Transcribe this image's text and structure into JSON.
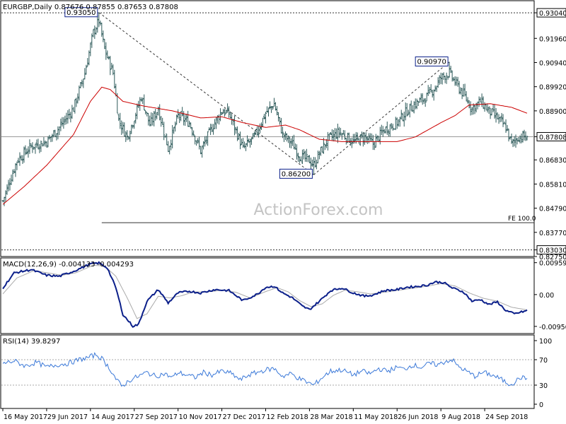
{
  "header": {
    "symbol_line": "EURGBP,Daily  0.87676 0.87855 0.87653 0.87808",
    "watermark": "ActionForex.com"
  },
  "colors": {
    "bars": "#2d5a5a",
    "ma": "#cc0000",
    "macd_main": "#0b1f8a",
    "macd_signal": "#aaaaaa",
    "rsi": "#3a78d8",
    "level_line": "#333333",
    "label_bg": "#ffffff",
    "label_border": "#0b1f8a"
  },
  "chart_data": [
    {
      "type": "bar",
      "name": "price",
      "title": "EURGBP,Daily",
      "ohlc_last": {
        "open": 0.87676,
        "high": 0.87855,
        "low": 0.87653,
        "close": 0.87808
      },
      "y_ticks": [
        "0.93040",
        "0.91960",
        "0.90940",
        "0.89920",
        "0.88900",
        "0.87808",
        "0.86830",
        "0.85810",
        "0.84790",
        "0.83770",
        "0.83030",
        "0.82750"
      ],
      "y_tick_values": [
        0.9304,
        0.9196,
        0.9094,
        0.8992,
        0.889,
        0.87808,
        0.8683,
        0.8581,
        0.8479,
        0.8377,
        0.8303,
        0.8275
      ],
      "ylim": [
        0.8275,
        0.9355
      ],
      "x_labels": [
        "16 May 2017",
        "29 Jun 2017",
        "14 Aug 2017",
        "27 Sep 2017",
        "10 Nov 2017",
        "27 Dec 2017",
        "12 Feb 2018",
        "28 Mar 2018",
        "11 May 2018",
        "26 Jun 2018",
        "9 Aug 2018",
        "24 Sep 2018"
      ],
      "x_label_bar_index": [
        0,
        31,
        62,
        93,
        124,
        155,
        186,
        217,
        248,
        279,
        310,
        341
      ],
      "bar_count": 372,
      "close_keypoints": [
        [
          0,
          0.851
        ],
        [
          10,
          0.868
        ],
        [
          20,
          0.874
        ],
        [
          31,
          0.876
        ],
        [
          40,
          0.882
        ],
        [
          50,
          0.89
        ],
        [
          58,
          0.905
        ],
        [
          64,
          0.922
        ],
        [
          68,
          0.927
        ],
        [
          72,
          0.915
        ],
        [
          78,
          0.905
        ],
        [
          82,
          0.885
        ],
        [
          88,
          0.878
        ],
        [
          93,
          0.886
        ],
        [
          98,
          0.895
        ],
        [
          104,
          0.883
        ],
        [
          110,
          0.89
        ],
        [
          117,
          0.873
        ],
        [
          124,
          0.887
        ],
        [
          132,
          0.884
        ],
        [
          140,
          0.872
        ],
        [
          148,
          0.882
        ],
        [
          155,
          0.889
        ],
        [
          160,
          0.888
        ],
        [
          170,
          0.873
        ],
        [
          178,
          0.878
        ],
        [
          186,
          0.888
        ],
        [
          192,
          0.892
        ],
        [
          198,
          0.879
        ],
        [
          205,
          0.875
        ],
        [
          210,
          0.87
        ],
        [
          217,
          0.868
        ],
        [
          220,
          0.866
        ],
        [
          224,
          0.871
        ],
        [
          230,
          0.877
        ],
        [
          238,
          0.88
        ],
        [
          248,
          0.876
        ],
        [
          256,
          0.878
        ],
        [
          262,
          0.875
        ],
        [
          270,
          0.881
        ],
        [
          279,
          0.884
        ],
        [
          286,
          0.889
        ],
        [
          292,
          0.892
        ],
        [
          300,
          0.895
        ],
        [
          306,
          0.899
        ],
        [
          310,
          0.903
        ],
        [
          316,
          0.905
        ],
        [
          320,
          0.901
        ],
        [
          326,
          0.896
        ],
        [
          332,
          0.89
        ],
        [
          338,
          0.893
        ],
        [
          344,
          0.889
        ],
        [
          350,
          0.886
        ],
        [
          356,
          0.882
        ],
        [
          360,
          0.875
        ],
        [
          365,
          0.878
        ],
        [
          371,
          0.87808
        ]
      ],
      "moving_average_keypoints": [
        [
          0,
          0.8495
        ],
        [
          15,
          0.857
        ],
        [
          31,
          0.866
        ],
        [
          50,
          0.879
        ],
        [
          62,
          0.893
        ],
        [
          70,
          0.899
        ],
        [
          76,
          0.898
        ],
        [
          85,
          0.893
        ],
        [
          100,
          0.891
        ],
        [
          120,
          0.889
        ],
        [
          140,
          0.886
        ],
        [
          155,
          0.8865
        ],
        [
          170,
          0.884
        ],
        [
          186,
          0.882
        ],
        [
          200,
          0.883
        ],
        [
          210,
          0.881
        ],
        [
          224,
          0.877
        ],
        [
          240,
          0.876
        ],
        [
          260,
          0.876
        ],
        [
          279,
          0.876
        ],
        [
          292,
          0.878
        ],
        [
          310,
          0.884
        ],
        [
          320,
          0.887
        ],
        [
          330,
          0.8915
        ],
        [
          345,
          0.892
        ],
        [
          360,
          0.8905
        ],
        [
          371,
          0.888
        ]
      ],
      "swing_labels": [
        {
          "label": "0.93050",
          "value": 0.9305,
          "bar": 68
        },
        {
          "label": "0.86200",
          "value": 0.862,
          "bar": 220
        },
        {
          "label": "0.90970",
          "value": 0.9097,
          "bar": 316
        }
      ],
      "trendlines": [
        {
          "from": [
            68,
            0.9305
          ],
          "to": [
            220,
            0.862
          ]
        },
        {
          "from": [
            220,
            0.862
          ],
          "to": [
            316,
            0.9097
          ]
        }
      ],
      "levels": [
        {
          "value": 0.9304,
          "label": "0.93040",
          "style": "dotted"
        },
        {
          "value": 0.8303,
          "label": "0.83030",
          "style": "dotted"
        },
        {
          "value": 0.87808,
          "label": "0.87808",
          "style": "solid"
        }
      ],
      "fe_line": {
        "label": "FE 100.0",
        "value": 0.8418,
        "from_bar": 70
      }
    },
    {
      "type": "line",
      "name": "macd",
      "title": "MACD(12,26,9) -0.004133 -0.004293",
      "y_ticks": [
        "0.009593",
        "0.00",
        "-0.009562"
      ],
      "y_tick_values": [
        0.009593,
        0,
        -0.009562
      ],
      "ylim": [
        -0.0115,
        0.0108
      ],
      "main_keypoints": [
        [
          0,
          0.002
        ],
        [
          8,
          0.0065
        ],
        [
          20,
          0.0075
        ],
        [
          31,
          0.0058
        ],
        [
          40,
          0.0055
        ],
        [
          50,
          0.007
        ],
        [
          62,
          0.0092
        ],
        [
          68,
          0.0095
        ],
        [
          74,
          0.008
        ],
        [
          80,
          0.002
        ],
        [
          85,
          -0.006
        ],
        [
          92,
          -0.0095
        ],
        [
          96,
          -0.009
        ],
        [
          102,
          -0.002
        ],
        [
          110,
          0.0015
        ],
        [
          117,
          -0.0025
        ],
        [
          124,
          0.0005
        ],
        [
          132,
          0.001
        ],
        [
          140,
          0.0005
        ],
        [
          150,
          0.0015
        ],
        [
          160,
          0.0012
        ],
        [
          170,
          -0.0018
        ],
        [
          180,
          0.0001
        ],
        [
          186,
          0.0022
        ],
        [
          192,
          0.0025
        ],
        [
          198,
          0.0005
        ],
        [
          205,
          -0.001
        ],
        [
          212,
          -0.0035
        ],
        [
          217,
          -0.0045
        ],
        [
          224,
          -0.002
        ],
        [
          232,
          0.0012
        ],
        [
          240,
          0.002
        ],
        [
          248,
          0.0005
        ],
        [
          256,
          -0.0005
        ],
        [
          262,
          -0.0001
        ],
        [
          270,
          0.0012
        ],
        [
          279,
          0.0015
        ],
        [
          286,
          0.0022
        ],
        [
          292,
          0.0024
        ],
        [
          300,
          0.0028
        ],
        [
          306,
          0.0038
        ],
        [
          312,
          0.0036
        ],
        [
          318,
          0.002
        ],
        [
          326,
          0.0008
        ],
        [
          332,
          -0.002
        ],
        [
          338,
          -0.0015
        ],
        [
          344,
          -0.003
        ],
        [
          350,
          -0.0022
        ],
        [
          356,
          -0.0048
        ],
        [
          362,
          -0.0058
        ],
        [
          371,
          -0.0048
        ]
      ],
      "signal_keypoints": [
        [
          0,
          0.0002
        ],
        [
          10,
          0.005
        ],
        [
          22,
          0.0072
        ],
        [
          32,
          0.0065
        ],
        [
          42,
          0.0058
        ],
        [
          52,
          0.0066
        ],
        [
          64,
          0.0088
        ],
        [
          72,
          0.0086
        ],
        [
          80,
          0.0055
        ],
        [
          88,
          -0.001
        ],
        [
          95,
          -0.0072
        ],
        [
          102,
          -0.0058
        ],
        [
          110,
          -0.0005
        ],
        [
          118,
          -0.001
        ],
        [
          126,
          -0.0004
        ],
        [
          135,
          0.0008
        ],
        [
          145,
          0.0008
        ],
        [
          155,
          0.0013
        ],
        [
          165,
          0.0007
        ],
        [
          175,
          -0.001
        ],
        [
          186,
          0.0009
        ],
        [
          194,
          0.0021
        ],
        [
          202,
          0.0008
        ],
        [
          210,
          -0.0018
        ],
        [
          218,
          -0.0036
        ],
        [
          226,
          -0.0028
        ],
        [
          234,
          -0.0002
        ],
        [
          242,
          0.0013
        ],
        [
          250,
          0.0009
        ],
        [
          260,
          0.0002
        ],
        [
          270,
          0.0007
        ],
        [
          280,
          0.0013
        ],
        [
          290,
          0.0019
        ],
        [
          300,
          0.0025
        ],
        [
          310,
          0.0033
        ],
        [
          320,
          0.0026
        ],
        [
          330,
          0.0005
        ],
        [
          340,
          -0.0011
        ],
        [
          350,
          -0.002
        ],
        [
          360,
          -0.0038
        ],
        [
          371,
          -0.0046
        ]
      ]
    },
    {
      "type": "line",
      "name": "rsi",
      "title": "RSI(14) 39.8297",
      "y_ticks": [
        "100",
        "70",
        "30",
        "0"
      ],
      "y_tick_values": [
        100,
        70,
        30,
        0
      ],
      "ylim": [
        0,
        100
      ],
      "keypoints": [
        [
          0,
          64
        ],
        [
          8,
          68
        ],
        [
          16,
          60
        ],
        [
          24,
          66
        ],
        [
          31,
          58
        ],
        [
          38,
          62
        ],
        [
          46,
          64
        ],
        [
          54,
          70
        ],
        [
          60,
          73
        ],
        [
          66,
          78
        ],
        [
          70,
          72
        ],
        [
          76,
          55
        ],
        [
          80,
          40
        ],
        [
          84,
          28
        ],
        [
          90,
          38
        ],
        [
          96,
          44
        ],
        [
          102,
          50
        ],
        [
          108,
          44
        ],
        [
          114,
          48
        ],
        [
          120,
          42
        ],
        [
          124,
          50
        ],
        [
          130,
          46
        ],
        [
          136,
          42
        ],
        [
          142,
          50
        ],
        [
          148,
          46
        ],
        [
          155,
          52
        ],
        [
          162,
          48
        ],
        [
          168,
          38
        ],
        [
          174,
          46
        ],
        [
          180,
          50
        ],
        [
          186,
          54
        ],
        [
          192,
          56
        ],
        [
          198,
          44
        ],
        [
          204,
          48
        ],
        [
          210,
          40
        ],
        [
          216,
          34
        ],
        [
          220,
          30
        ],
        [
          226,
          42
        ],
        [
          232,
          52
        ],
        [
          240,
          54
        ],
        [
          248,
          46
        ],
        [
          254,
          52
        ],
        [
          260,
          48
        ],
        [
          266,
          56
        ],
        [
          272,
          52
        ],
        [
          279,
          58
        ],
        [
          284,
          55
        ],
        [
          290,
          62
        ],
        [
          296,
          58
        ],
        [
          302,
          64
        ],
        [
          308,
          62
        ],
        [
          314,
          68
        ],
        [
          318,
          70
        ],
        [
          322,
          60
        ],
        [
          328,
          52
        ],
        [
          334,
          44
        ],
        [
          340,
          50
        ],
        [
          346,
          46
        ],
        [
          352,
          40
        ],
        [
          358,
          32
        ],
        [
          362,
          34
        ],
        [
          366,
          42
        ],
        [
          371,
          40
        ]
      ]
    }
  ]
}
